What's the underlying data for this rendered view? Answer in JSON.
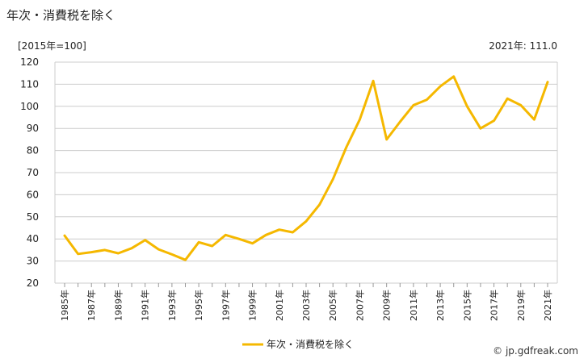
{
  "header": {
    "title": "年次・消費税を除く",
    "unit": "[2015年=100]",
    "latest": "2021年: 111.0",
    "credit": "© jp.gdfreak.com"
  },
  "chart_data": {
    "type": "line",
    "title": "年次・消費税を除く",
    "xlabel": "",
    "ylabel": "",
    "ylim": [
      20,
      120
    ],
    "yticks": [
      20,
      30,
      40,
      50,
      60,
      70,
      80,
      90,
      100,
      110,
      120
    ],
    "grid": "horizontal",
    "legend_position": "bottom",
    "x": [
      1985,
      1986,
      1987,
      1988,
      1989,
      1990,
      1991,
      1992,
      1993,
      1994,
      1995,
      1996,
      1997,
      1998,
      1999,
      2000,
      2001,
      2002,
      2003,
      2004,
      2005,
      2006,
      2007,
      2008,
      2009,
      2010,
      2011,
      2012,
      2013,
      2014,
      2015,
      2016,
      2017,
      2018,
      2019,
      2020,
      2021
    ],
    "xtick_labels": [
      "1985年",
      "1987年",
      "1989年",
      "1991年",
      "1993年",
      "1995年",
      "1997年",
      "1999年",
      "2001年",
      "2003年",
      "2005年",
      "2007年",
      "2009年",
      "2011年",
      "2013年",
      "2015年",
      "2017年",
      "2019年",
      "2021年"
    ],
    "series": [
      {
        "name": "年次・消費税を除く",
        "color": "#f5b800",
        "values": [
          41.5,
          33.2,
          34.0,
          35.0,
          33.5,
          35.8,
          39.5,
          35.3,
          33.0,
          30.5,
          38.5,
          36.8,
          41.8,
          40.0,
          38.0,
          41.8,
          44.2,
          43.0,
          48.0,
          55.5,
          67.0,
          81.5,
          94.0,
          111.5,
          85.0,
          93.0,
          100.5,
          103.0,
          109.0,
          113.5,
          100.0,
          90.0,
          93.5,
          103.5,
          100.5,
          94.0,
          111.0
        ]
      }
    ]
  }
}
